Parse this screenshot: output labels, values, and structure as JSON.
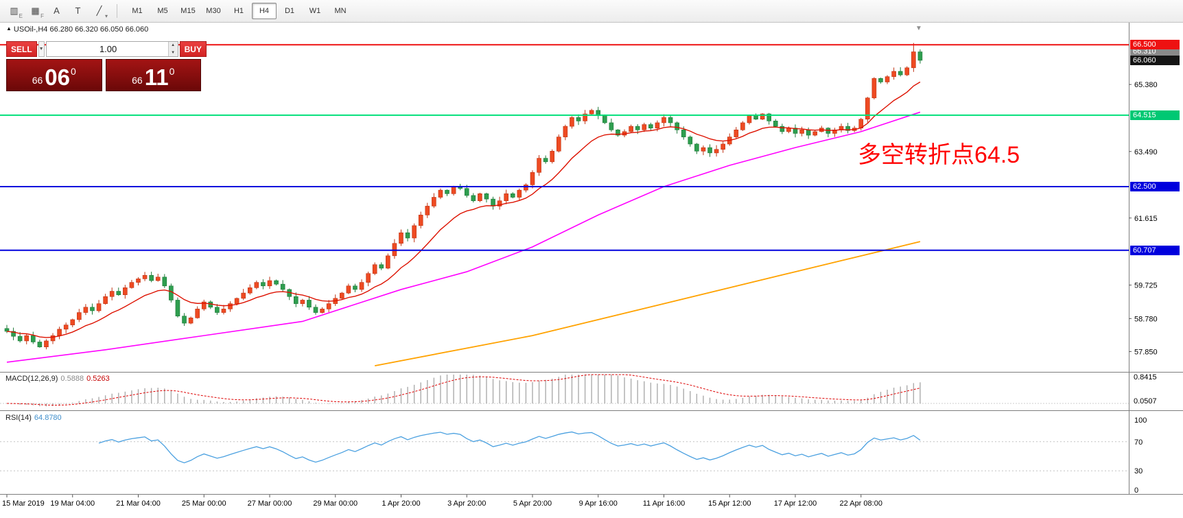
{
  "colors": {
    "up": "#ee4a22",
    "up_border": "#bf3212",
    "down": "#2e9e4f",
    "down_border": "#1c7a37",
    "ma_fast": "#dd1100",
    "ma_mid": "#ff00ff",
    "ma_slow": "#ffa200",
    "macd_hist": "#ababab",
    "macd_signal": "#dd0000",
    "rsi_line": "#4aa0e0",
    "annotation": "#ff0000"
  },
  "icons": {
    "shift_marker": "▼",
    "dropdown": "▼",
    "spin_up": "▲",
    "spin_down": "▼"
  },
  "toolbar": {
    "tools": [
      {
        "name": "chart-template-tool",
        "glyph": "▥",
        "sub": "E"
      },
      {
        "name": "grid-tool",
        "glyph": "▦",
        "sub": "F"
      },
      {
        "name": "text-label-tool",
        "glyph": "A",
        "sub": ""
      },
      {
        "name": "text-tool",
        "glyph": "T",
        "sub": ""
      },
      {
        "name": "line-style-tool",
        "glyph": "╱",
        "sub": "▾"
      }
    ],
    "timeframes": [
      {
        "label": "M1",
        "active": false
      },
      {
        "label": "M5",
        "active": false
      },
      {
        "label": "M15",
        "active": false
      },
      {
        "label": "M30",
        "active": false
      },
      {
        "label": "H1",
        "active": false
      },
      {
        "label": "H4",
        "active": true
      },
      {
        "label": "D1",
        "active": false
      },
      {
        "label": "W1",
        "active": false
      },
      {
        "label": "MN",
        "active": false
      }
    ]
  },
  "chart": {
    "title_marker": "▲",
    "title": "USOil-,H4  66.280 66.320 66.050 66.060"
  },
  "trade_panel": {
    "sell_label": "SELL",
    "buy_label": "BUY",
    "volume": "1.00",
    "sell_price": {
      "small": "66",
      "big": "06",
      "sup": "0"
    },
    "buy_price": {
      "small": "66",
      "big": "11",
      "sup": "0"
    }
  },
  "axis": {
    "badges": [
      {
        "text": "66.310",
        "price": 66.31,
        "bg": "#8a8a8a"
      },
      {
        "text": "66.500",
        "price": 66.5,
        "bg": "#ee1111"
      },
      {
        "text": "66.060",
        "price": 66.06,
        "bg": "#151515"
      },
      {
        "text": "64.515",
        "price": 64.515,
        "bg": "#00c873"
      },
      {
        "text": "62.500",
        "price": 62.5,
        "bg": "#0000dd"
      },
      {
        "text": "60.707",
        "price": 60.707,
        "bg": "#0000dd"
      }
    ],
    "ticks": [
      {
        "text": "65.380",
        "price": 65.38
      },
      {
        "text": "63.490",
        "price": 63.49
      },
      {
        "text": "61.615",
        "price": 61.615
      },
      {
        "text": "59.725",
        "price": 59.725
      },
      {
        "text": "58.780",
        "price": 58.78
      },
      {
        "text": "57.850",
        "price": 57.85
      }
    ]
  },
  "macd": {
    "label": "MACD(12,26,9)",
    "v1": "0.5888",
    "v2": "0.5263",
    "axis_top": "0.8415",
    "axis_bottom": "0.0507"
  },
  "rsi": {
    "label": "RSI(14)",
    "value": "64.8780",
    "levels": [
      100,
      70,
      30,
      0
    ]
  },
  "chart_data": {
    "type": "candlestick",
    "symbol": "USOil-",
    "timeframe": "H4",
    "title": "USOil-,H4",
    "ohlc_display": {
      "open": 66.28,
      "high": 66.32,
      "low": 66.05,
      "close": 66.06
    },
    "annotation": "多空转折点64.5",
    "ylim": [
      57.3,
      67.05
    ],
    "open_first": 58.5,
    "closes": [
      58.42,
      58.28,
      58.15,
      58.3,
      58.12,
      57.98,
      58.15,
      58.3,
      58.48,
      58.6,
      58.75,
      58.95,
      59.1,
      59.0,
      59.2,
      59.4,
      59.55,
      59.45,
      59.65,
      59.8,
      59.9,
      60.0,
      59.85,
      59.95,
      59.7,
      59.3,
      58.85,
      58.65,
      58.8,
      59.05,
      59.25,
      59.1,
      58.95,
      59.05,
      59.2,
      59.35,
      59.5,
      59.65,
      59.8,
      59.7,
      59.85,
      59.75,
      59.6,
      59.4,
      59.2,
      59.3,
      59.1,
      58.95,
      59.05,
      59.2,
      59.35,
      59.5,
      59.7,
      59.6,
      59.8,
      60.05,
      60.3,
      60.2,
      60.55,
      60.9,
      61.2,
      61.05,
      61.4,
      61.7,
      61.95,
      62.2,
      62.4,
      62.3,
      62.5,
      62.45,
      62.25,
      62.1,
      62.3,
      62.15,
      61.95,
      62.1,
      62.3,
      62.2,
      62.4,
      62.55,
      62.9,
      63.3,
      63.2,
      63.5,
      63.9,
      64.2,
      64.45,
      64.35,
      64.55,
      64.65,
      64.5,
      64.3,
      64.1,
      63.95,
      64.05,
      64.2,
      64.1,
      64.25,
      64.15,
      64.3,
      64.45,
      64.3,
      64.1,
      63.9,
      63.7,
      63.5,
      63.6,
      63.45,
      63.55,
      63.7,
      63.9,
      64.1,
      64.3,
      64.5,
      64.4,
      64.55,
      64.35,
      64.2,
      64.05,
      64.15,
      64.0,
      64.1,
      63.95,
      64.05,
      64.15,
      64.0,
      64.1,
      64.2,
      64.08,
      64.15,
      64.4,
      65.0,
      65.55,
      65.45,
      65.6,
      65.75,
      65.65,
      65.85,
      66.3,
      66.06
    ],
    "peak": {
      "index": 138,
      "high": 66.55
    },
    "label_every": 10,
    "x_labels": [
      "15 Mar 2019",
      "19 Mar 04:00",
      "21 Mar 04:00",
      "25 Mar 00:00",
      "27 Mar 00:00",
      "29 Mar 00:00",
      "1 Apr 20:00",
      "3 Apr 20:00",
      "5 Apr 20:00",
      "9 Apr 16:00",
      "11 Apr 16:00",
      "15 Apr 12:00",
      "17 Apr 12:00",
      "22 Apr 08:00"
    ],
    "levels": [
      {
        "price": 66.5,
        "color": "#ee1111"
      },
      {
        "price": 64.515,
        "color": "#00e07a"
      },
      {
        "price": 62.5,
        "color": "#0000dd"
      },
      {
        "price": 60.707,
        "color": "#0000dd"
      }
    ],
    "ma_fast_period": 12,
    "ma_mid_points": [
      [
        0,
        57.55
      ],
      [
        15,
        57.9
      ],
      [
        30,
        58.3
      ],
      [
        45,
        58.7
      ],
      [
        60,
        59.6
      ],
      [
        70,
        60.1
      ],
      [
        80,
        60.8
      ],
      [
        90,
        61.7
      ],
      [
        100,
        62.5
      ],
      [
        110,
        63.1
      ],
      [
        120,
        63.6
      ],
      [
        130,
        64.05
      ],
      [
        139,
        64.6
      ]
    ],
    "ma_slow_points": [
      [
        56,
        57.45
      ],
      [
        80,
        58.3
      ],
      [
        100,
        59.2
      ],
      [
        120,
        60.1
      ],
      [
        139,
        60.95
      ]
    ],
    "macd_params": {
      "fast": 12,
      "slow": 26,
      "signal": 9
    },
    "rsi_period": 14,
    "rsi_guides": [
      70,
      30
    ]
  }
}
